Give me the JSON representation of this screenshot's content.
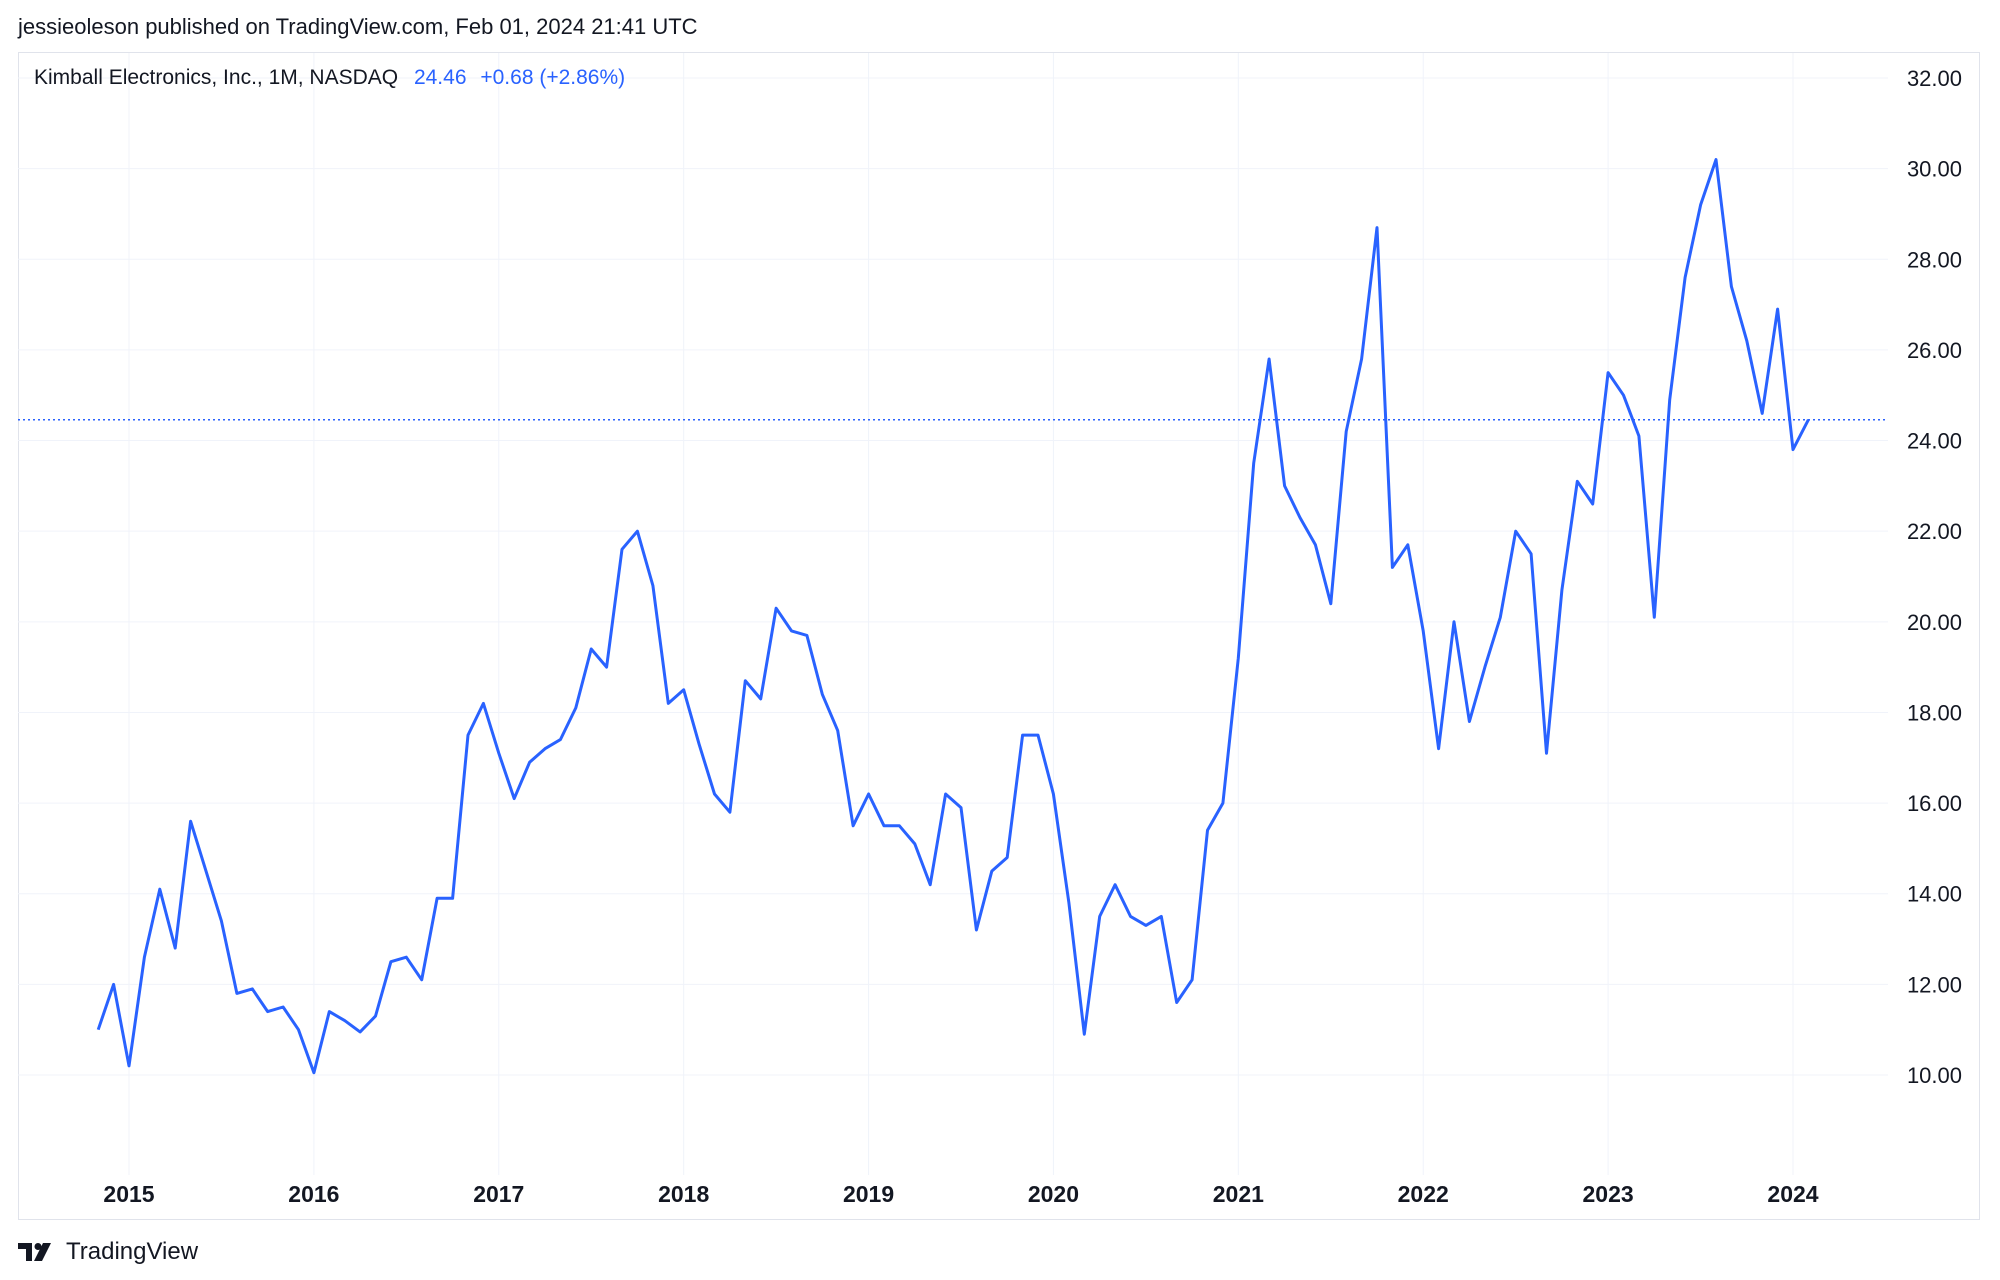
{
  "header": {
    "published": "jessieoleson published on TradingView.com, Feb 01, 2024 21:41 UTC"
  },
  "legend": {
    "symbol": "Kimball Electronics, Inc., 1M, NASDAQ",
    "last": "24.46",
    "change": "+0.68 (+2.86%)"
  },
  "footer": {
    "brand": "TradingView",
    "logo_icon": "tradingview-logo-icon"
  },
  "colors": {
    "line": "#2962ff",
    "grid": "#f0f3fa",
    "axis_text": "#131722"
  },
  "chart_data": {
    "type": "line",
    "title": "",
    "xlabel": "",
    "ylabel": "",
    "ylim": [
      8,
      32.5
    ],
    "y_ticks": [
      "10.00",
      "12.00",
      "14.00",
      "16.00",
      "18.00",
      "20.00",
      "22.00",
      "24.00",
      "26.00",
      "28.00",
      "30.00",
      "32.00"
    ],
    "x_ticks": [
      "2015",
      "2016",
      "2017",
      "2018",
      "2019",
      "2020",
      "2021",
      "2022",
      "2023",
      "2024"
    ],
    "grid": true,
    "last_value_line": 24.46,
    "series": [
      {
        "start": "2014-11",
        "frequency": "monthly",
        "values": [
          11.0,
          12.0,
          10.2,
          12.6,
          14.1,
          12.8,
          15.6,
          14.5,
          13.4,
          11.8,
          11.9,
          11.4,
          11.5,
          11.0,
          10.05,
          11.4,
          11.2,
          10.95,
          11.3,
          12.5,
          12.6,
          12.1,
          13.9,
          13.9,
          17.5,
          18.2,
          17.1,
          16.1,
          16.9,
          17.2,
          17.4,
          18.1,
          19.4,
          19.0,
          21.6,
          22.0,
          20.8,
          18.2,
          18.5,
          17.3,
          16.2,
          15.8,
          18.7,
          18.3,
          20.3,
          19.8,
          19.7,
          18.4,
          17.6,
          15.5,
          16.2,
          15.5,
          15.5,
          15.1,
          14.2,
          16.2,
          15.9,
          13.2,
          14.5,
          14.8,
          17.5,
          17.5,
          16.2,
          13.8,
          10.9,
          13.5,
          14.2,
          13.5,
          13.3,
          13.5,
          11.6,
          12.1,
          15.4,
          16.0,
          19.2,
          23.5,
          25.8,
          23.0,
          22.3,
          21.7,
          20.4,
          24.2,
          25.8,
          28.7,
          21.2,
          21.7,
          19.8,
          17.2,
          20.0,
          17.8,
          19.0,
          20.1,
          22.0,
          21.5,
          17.1,
          20.7,
          23.1,
          22.6,
          25.5,
          25.0,
          24.1,
          20.1,
          24.9,
          27.6,
          29.2,
          30.2,
          27.4,
          26.2,
          24.6,
          26.9,
          23.8,
          24.46
        ]
      }
    ]
  }
}
